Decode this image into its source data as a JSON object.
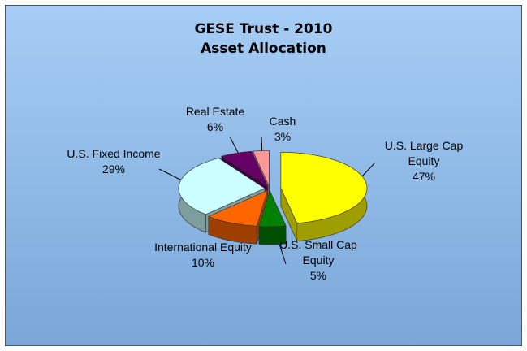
{
  "chart_data": {
    "type": "pie3d",
    "title": "GESE Trust - 2010",
    "subtitle": "Asset Allocation",
    "categories": [
      "U.S. Large Cap Equity",
      "U.S. Small Cap Equity",
      "International Equity",
      "U.S. Fixed Income",
      "Real Estate",
      "Cash"
    ],
    "values": [
      47,
      5,
      10,
      29,
      6,
      3
    ],
    "value_labels": [
      "47%",
      "5%",
      "10%",
      "29%",
      "6%",
      "3%"
    ],
    "colors": [
      "#ffff00",
      "#008000",
      "#ff6600",
      "#ccffff",
      "#660066",
      "#ff9999"
    ]
  }
}
